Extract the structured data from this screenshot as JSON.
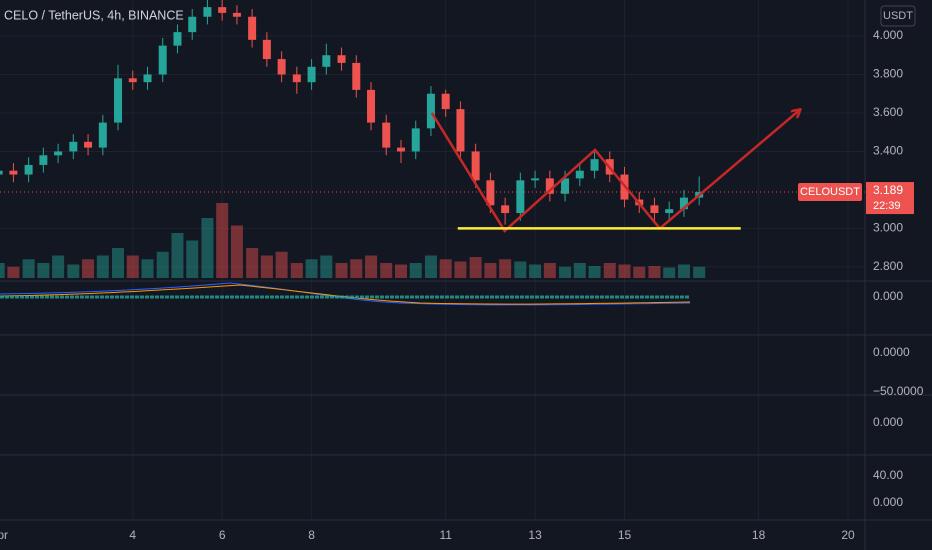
{
  "chart_data": {
    "type": "candlestick",
    "title": "CELO / TetherUS, 4h, BINANCE",
    "currency": "USDT",
    "symbol_label": "CELOUSDT",
    "countdown": "22:39",
    "up_color": "#26a69a",
    "down_color": "#ef5350",
    "x": [
      1,
      1.33,
      1.67,
      2,
      2.33,
      2.67,
      3,
      3.33,
      3.67,
      4,
      4.33,
      4.67,
      5,
      5.33,
      5.67,
      6,
      6.33,
      6.67,
      7,
      7.33,
      7.67,
      8,
      8.33,
      8.67,
      9,
      9.33,
      9.67,
      10,
      10.33,
      10.67,
      11,
      11.33,
      11.67,
      12,
      12.33,
      12.67,
      13,
      13.33,
      13.67,
      14,
      14.33,
      14.67,
      15,
      15.33,
      15.67,
      16,
      16.33,
      16.67
    ],
    "open": [
      3.28,
      3.3,
      3.28,
      3.33,
      3.38,
      3.4,
      3.45,
      3.42,
      3.55,
      3.78,
      3.76,
      3.8,
      3.95,
      4.02,
      4.1,
      4.15,
      4.12,
      4.1,
      3.98,
      3.88,
      3.8,
      3.76,
      3.84,
      3.9,
      3.86,
      3.72,
      3.55,
      3.42,
      3.4,
      3.52,
      3.7,
      3.62,
      3.4,
      3.25,
      3.12,
      3.08,
      3.25,
      3.26,
      3.18,
      3.26,
      3.3,
      3.36,
      3.28,
      3.15,
      3.12,
      3.08,
      3.1,
      3.16
    ],
    "high": [
      3.34,
      3.34,
      3.37,
      3.42,
      3.44,
      3.49,
      3.49,
      3.59,
      3.85,
      3.82,
      3.84,
      3.99,
      4.06,
      4.14,
      4.19,
      4.19,
      4.16,
      4.14,
      4.02,
      3.92,
      3.84,
      3.88,
      3.96,
      3.94,
      3.9,
      3.76,
      3.59,
      3.46,
      3.56,
      3.74,
      3.72,
      3.66,
      3.44,
      3.29,
      3.16,
      3.29,
      3.3,
      3.3,
      3.3,
      3.34,
      3.4,
      3.4,
      3.32,
      3.19,
      3.16,
      3.14,
      3.2,
      3.27
    ],
    "low": [
      3.24,
      3.24,
      3.24,
      3.29,
      3.34,
      3.36,
      3.38,
      3.38,
      3.51,
      3.72,
      3.72,
      3.76,
      3.91,
      3.98,
      4.06,
      4.08,
      4.06,
      3.94,
      3.84,
      3.76,
      3.7,
      3.72,
      3.8,
      3.82,
      3.68,
      3.51,
      3.38,
      3.34,
      3.36,
      3.48,
      3.58,
      3.36,
      3.21,
      3.08,
      3.02,
      3.04,
      3.21,
      3.14,
      3.14,
      3.22,
      3.26,
      3.24,
      3.11,
      3.08,
      3.04,
      3.04,
      3.06,
      3.12
    ],
    "close": [
      3.3,
      3.28,
      3.33,
      3.38,
      3.4,
      3.45,
      3.42,
      3.55,
      3.78,
      3.76,
      3.8,
      3.95,
      4.02,
      4.1,
      4.15,
      4.12,
      4.1,
      3.98,
      3.88,
      3.8,
      3.76,
      3.84,
      3.9,
      3.86,
      3.72,
      3.55,
      3.42,
      3.4,
      3.52,
      3.7,
      3.62,
      3.4,
      3.25,
      3.12,
      3.08,
      3.25,
      3.26,
      3.18,
      3.26,
      3.3,
      3.36,
      3.28,
      3.15,
      3.12,
      3.08,
      3.1,
      3.16,
      3.189
    ],
    "volume": [
      2,
      1.5,
      2.5,
      2,
      3,
      1.8,
      2.5,
      3,
      4,
      3,
      2.5,
      3.5,
      6,
      5,
      8,
      10,
      7,
      4,
      3,
      3.5,
      2,
      2.5,
      3,
      2,
      2.5,
      3,
      2,
      1.8,
      2,
      3,
      2.5,
      2.2,
      2.8,
      2,
      2.5,
      2.2,
      1.8,
      2,
      1.5,
      2,
      1.6,
      2,
      1.8,
      1.5,
      1.6,
      1.4,
      1.8,
      1.5
    ],
    "ylim": [
      2.732,
      4.187
    ],
    "yticks": [
      {
        "value": 4,
        "label": "4.000"
      },
      {
        "value": 3.8,
        "label": "3.800"
      },
      {
        "value": 3.6,
        "label": "3.600"
      },
      {
        "value": 3.4,
        "label": "3.400"
      },
      {
        "value": 3,
        "label": "3.000"
      },
      {
        "value": 2.8,
        "label": "2.800"
      }
    ],
    "xlim": [
      1.03,
      20.38
    ],
    "xticks": [
      {
        "value": 1,
        "label": "Apr"
      },
      4,
      6,
      8,
      11,
      13,
      15,
      18,
      20
    ],
    "drawings": [
      {
        "color": "#c62828",
        "x": [
          10.69,
          12.32,
          14.34,
          15.79,
          18.92
        ],
        "y": [
          3.6,
          2.987,
          3.408,
          3.0,
          3.616
        ]
      },
      {
        "color": "#ffeb3b",
        "x": [
          11.27,
          17.6
        ],
        "y": [
          3.0,
          3.0
        ]
      }
    ],
    "indicator_labels": [
      "0.000",
      "0.0000",
      "−50.0000",
      "0.000",
      "40.00",
      "0.000"
    ]
  }
}
